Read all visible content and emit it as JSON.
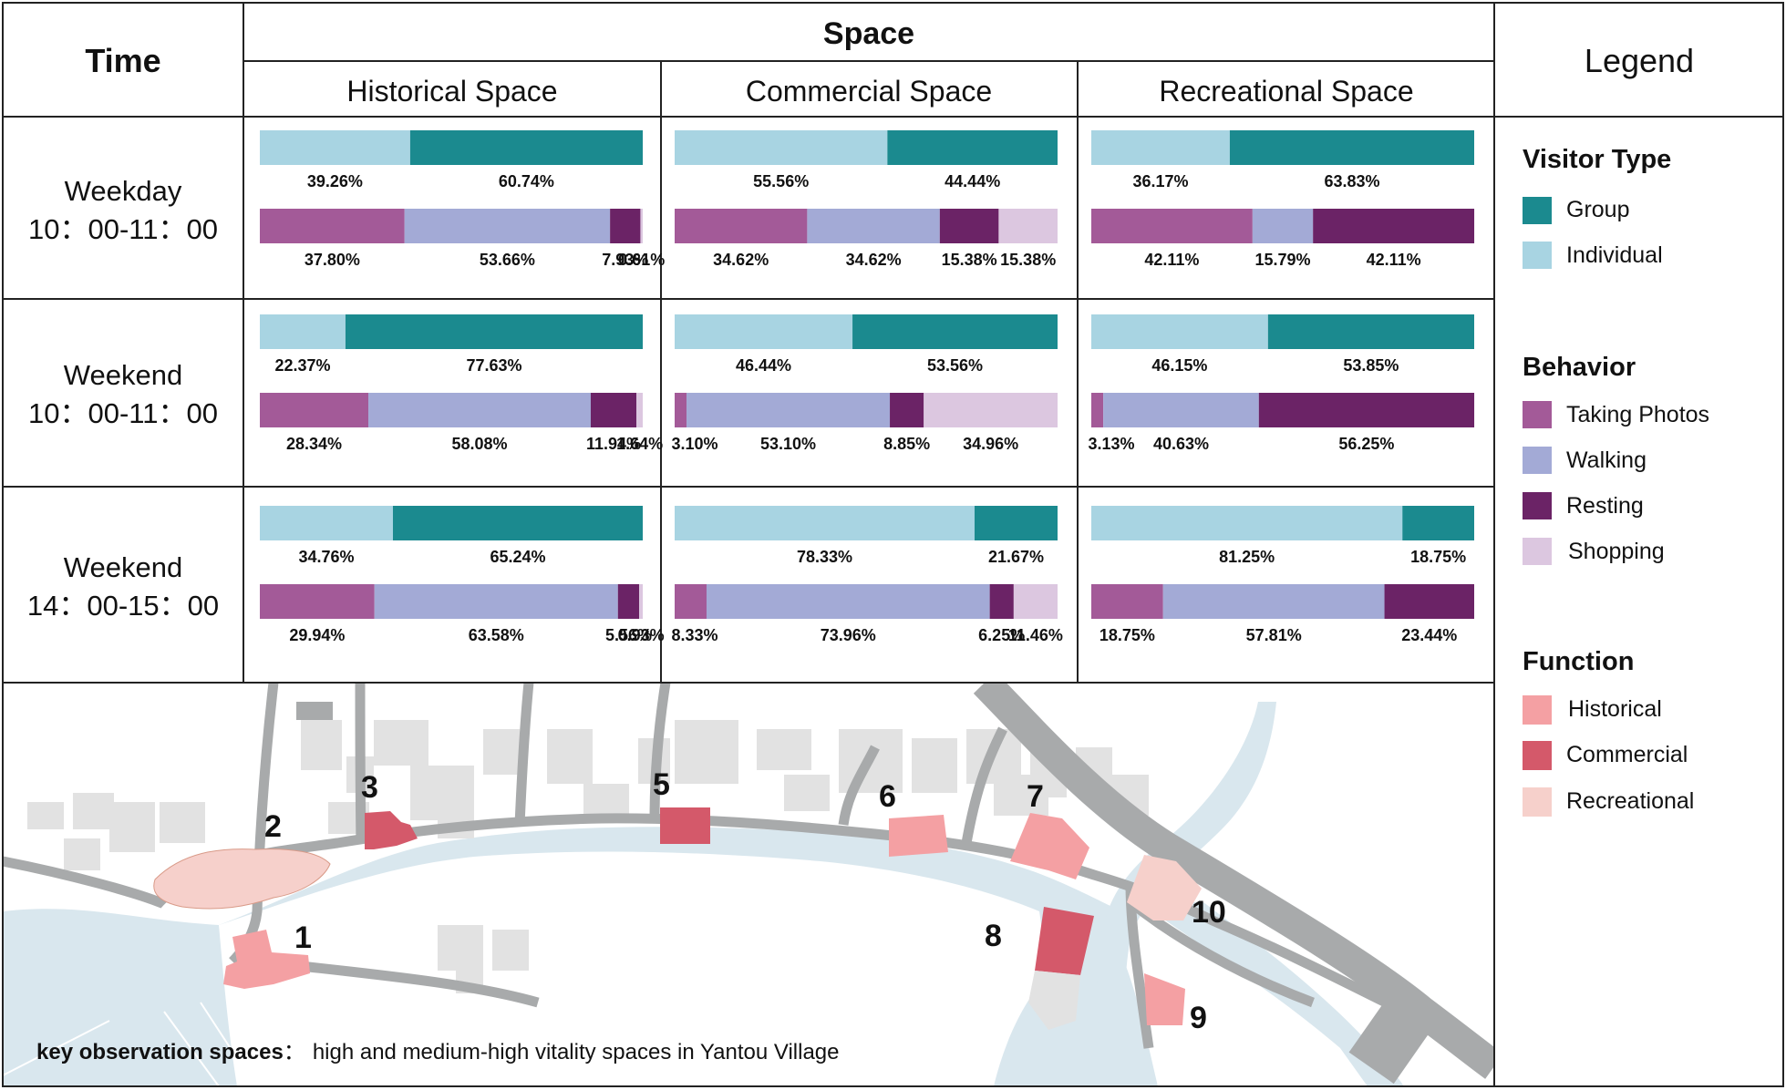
{
  "colors": {
    "group": "#1b8a8f",
    "individual": "#a8d4e2",
    "taking_photos": "#a35a98",
    "walking": "#a3aad6",
    "resting": "#6b2366",
    "shopping": "#dcc7e0",
    "historical": "#f4a0a3",
    "commercial": "#d4596a",
    "recreational": "#f6d0cb",
    "road": "#a8aaab",
    "water": "#d9e7ee",
    "building": "#e2e2e2"
  },
  "header": {
    "time": "Time",
    "space": "Space",
    "legend": "Legend",
    "historical_space": "Historical Space",
    "commercial_space": "Commercial Space",
    "recreational_space": "Recreational Space"
  },
  "rows": [
    {
      "line1": "Weekday",
      "line2": "10：00-11：00"
    },
    {
      "line1": "Weekend",
      "line2": "10：00-11：00"
    },
    {
      "line1": "Weekend",
      "line2": "14：00-15：00"
    }
  ],
  "legend": {
    "visitor_type_title": "Visitor Type",
    "group": "Group",
    "individual": "Individual",
    "behavior_title": "Behavior",
    "taking_photos": "Taking Photos",
    "walking": "Walking",
    "resting": "Resting",
    "shopping": "Shopping",
    "function_title": "Function",
    "historical": "Historical",
    "commercial": "Commercial",
    "recreational": "Recreational"
  },
  "map": {
    "caption_bold": "key observation spaces",
    "caption_colon": "：",
    "caption_text": "high and medium-high vitality spaces in Yantou Village",
    "labels": [
      "1",
      "2",
      "3",
      "5",
      "6",
      "7",
      "8",
      "9",
      "10"
    ]
  },
  "chart_data": {
    "type": "bar",
    "orientation": "horizontal-stacked-100%",
    "rows": [
      "Weekday 10：00-11：00",
      "Weekend 10：00-11：00",
      "Weekend 14：00-15：00"
    ],
    "columns": [
      "Historical Space",
      "Commercial Space",
      "Recreational Space"
    ],
    "visitor_type_series": [
      "Individual",
      "Group"
    ],
    "behavior_series": [
      "Taking Photos",
      "Walking",
      "Resting",
      "Shopping"
    ],
    "cells": [
      [
        {
          "visitor": [
            {
              "v": 39.26,
              "t": "39.26%"
            },
            {
              "v": 60.74,
              "t": "60.74%"
            }
          ],
          "behavior": [
            {
              "v": 37.8,
              "t": "37.80%"
            },
            {
              "v": 53.66,
              "t": "53.66%"
            },
            {
              "v": 7.93,
              "t": "7.93%"
            },
            {
              "v": 0.61,
              "t": "0.61%"
            }
          ]
        },
        {
          "visitor": [
            {
              "v": 55.56,
              "t": "55.56%"
            },
            {
              "v": 44.44,
              "t": "44.44%"
            }
          ],
          "behavior": [
            {
              "v": 34.62,
              "t": "34.62%"
            },
            {
              "v": 34.62,
              "t": "34.62%"
            },
            {
              "v": 15.38,
              "t": "15.38%"
            },
            {
              "v": 15.38,
              "t": "15.38%"
            }
          ]
        },
        {
          "visitor": [
            {
              "v": 36.17,
              "t": "36.17%"
            },
            {
              "v": 63.83,
              "t": "63.83%"
            }
          ],
          "behavior": [
            {
              "v": 42.11,
              "t": "42.11%"
            },
            {
              "v": 15.79,
              "t": "15.79%"
            },
            {
              "v": 42.11,
              "t": "42.11%"
            },
            {
              "v": 0,
              "t": ""
            }
          ]
        }
      ],
      [
        {
          "visitor": [
            {
              "v": 22.37,
              "t": "22.37%"
            },
            {
              "v": 77.63,
              "t": "77.63%"
            }
          ],
          "behavior": [
            {
              "v": 28.34,
              "t": "28.34%"
            },
            {
              "v": 58.08,
              "t": "58.08%"
            },
            {
              "v": 11.94,
              "t": "11.94%"
            },
            {
              "v": 1.64,
              "t": "1.64%"
            }
          ]
        },
        {
          "visitor": [
            {
              "v": 46.44,
              "t": "46.44%"
            },
            {
              "v": 53.56,
              "t": "53.56%"
            }
          ],
          "behavior": [
            {
              "v": 3.1,
              "t": "3.10%"
            },
            {
              "v": 53.1,
              "t": "53.10%"
            },
            {
              "v": 8.85,
              "t": "8.85%"
            },
            {
              "v": 34.96,
              "t": "34.96%"
            }
          ]
        },
        {
          "visitor": [
            {
              "v": 46.15,
              "t": "46.15%"
            },
            {
              "v": 53.85,
              "t": "53.85%"
            }
          ],
          "behavior": [
            {
              "v": 3.13,
              "t": "3.13%"
            },
            {
              "v": 40.63,
              "t": "40.63%"
            },
            {
              "v": 56.25,
              "t": "56.25%"
            },
            {
              "v": 0,
              "t": ""
            }
          ]
        }
      ],
      [
        {
          "visitor": [
            {
              "v": 34.76,
              "t": "34.76%"
            },
            {
              "v": 65.24,
              "t": "65.24%"
            }
          ],
          "behavior": [
            {
              "v": 29.94,
              "t": "29.94%"
            },
            {
              "v": 63.58,
              "t": "63.58%"
            },
            {
              "v": 5.56,
              "t": "5.56%"
            },
            {
              "v": 0.93,
              "t": "0.93%"
            }
          ]
        },
        {
          "visitor": [
            {
              "v": 78.33,
              "t": "78.33%"
            },
            {
              "v": 21.67,
              "t": "21.67%"
            }
          ],
          "behavior": [
            {
              "v": 8.33,
              "t": "8.33%"
            },
            {
              "v": 73.96,
              "t": "73.96%"
            },
            {
              "v": 6.25,
              "t": "6.25%"
            },
            {
              "v": 11.46,
              "t": "11.46%"
            }
          ]
        },
        {
          "visitor": [
            {
              "v": 81.25,
              "t": "81.25%"
            },
            {
              "v": 18.75,
              "t": "18.75%"
            }
          ],
          "behavior": [
            {
              "v": 18.75,
              "t": "18.75%"
            },
            {
              "v": 57.81,
              "t": "57.81%"
            },
            {
              "v": 23.44,
              "t": "23.44%"
            },
            {
              "v": 0,
              "t": ""
            }
          ]
        }
      ]
    ]
  }
}
